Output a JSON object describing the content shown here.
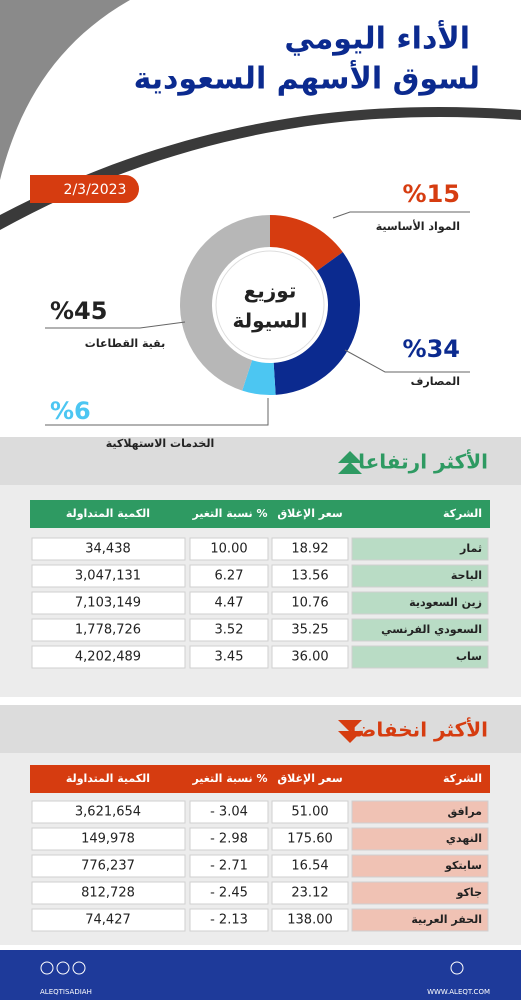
{
  "title_line1": "الأداء اليومي",
  "title_line2": "لسوق الأسهم السعودية",
  "date": "2/3/2023",
  "chart_data": {
    "type": "pie",
    "title_line1": "توزيع",
    "title_line2": "السيولة",
    "categories": [
      "المواد الأساسية",
      "المصارف",
      "الخدمات الاستهلاكية",
      "بقية القطاعات"
    ],
    "values": [
      15,
      34,
      6,
      45
    ],
    "value_labels": [
      "%15",
      "%34",
      "%6",
      "%45"
    ],
    "colors": [
      "#d63c10",
      "#0b2a8f",
      "#4cc6f2",
      "#b7b7b7"
    ]
  },
  "gainers": {
    "title": "الأكثر ارتفاعا",
    "columns": [
      "الشركة",
      "سعر الإغلاق",
      "نسبة التغير %",
      "الكمية المتداولة"
    ],
    "rows": [
      [
        "ثمار",
        "18.92",
        "10.00",
        "34,438"
      ],
      [
        "الباحة",
        "13.56",
        "6.27",
        "3,047,131"
      ],
      [
        "زين السعودية",
        "10.76",
        "4.47",
        "7,103,149"
      ],
      [
        "السعودي الفرنسي",
        "35.25",
        "3.52",
        "1,778,726"
      ],
      [
        "ساب",
        "36.00",
        "3.45",
        "4,202,489"
      ]
    ]
  },
  "losers": {
    "title": "الأكثر انخفاضا",
    "columns": [
      "الشركة",
      "سعر الإغلاق",
      "نسبة التغير %",
      "الكمية المتداولة"
    ],
    "rows": [
      [
        "مرافق",
        "51.00",
        "- 3.04",
        "3,621,654"
      ],
      [
        "النهدي",
        "175.60",
        "- 2.98",
        "149,978"
      ],
      [
        "سابتكو",
        "16.54",
        "- 2.71",
        "776,237"
      ],
      [
        "جاكو",
        "23.12",
        "- 2.45",
        "812,728"
      ],
      [
        "الحفر العربية",
        "138.00",
        "- 2.13",
        "74,427"
      ]
    ]
  },
  "footer": {
    "handle": "ALEQTISADIAH",
    "site": "WWW.ALEQT.COM"
  }
}
